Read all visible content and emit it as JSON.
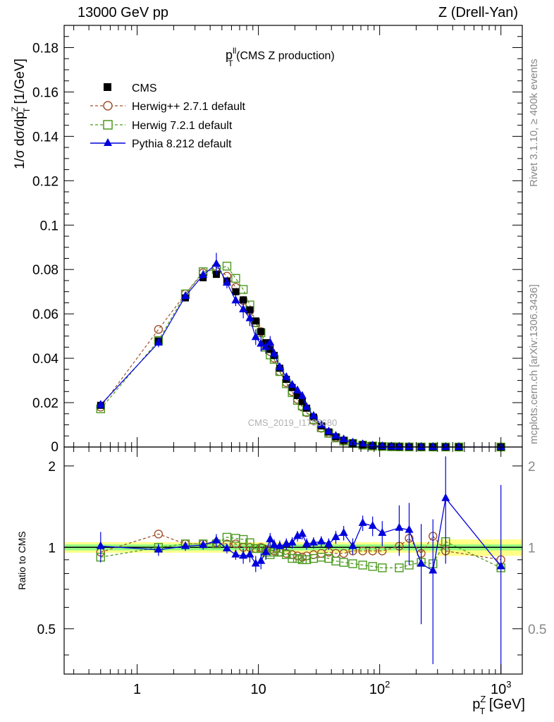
{
  "header": {
    "left": "13000 GeV pp",
    "right": "Z (Drell-Yan)"
  },
  "side_labels": {
    "rivet": "Rivet 3.1.10, ≥ 400k events",
    "mcplots": "mcplots.cern.ch [arXiv:1306.3436]"
  },
  "watermark": "CMS_2019_I1753680",
  "colors": {
    "data": "#000000",
    "herwigpp": "#a0522d",
    "herwig7": "#4c9a1f",
    "pythia": "#0000dd",
    "band_inner": "#80ff80",
    "band_outer": "#ffff80"
  },
  "chart_data": [
    {
      "type": "scatter",
      "title_main": "p",
      "title_sup": "ll",
      "title_sub": "T",
      "title_rest": " (CMS Z production)",
      "ylabel": "1/σ dσ/dp",
      "ylabel_sup": "Z",
      "ylabel_sub": "T",
      "ylabel_unit": " [1/GeV]",
      "xscale": "log",
      "xlim": [
        0.25,
        1500
      ],
      "ylim": [
        0,
        0.19
      ],
      "yticks": [
        0.02,
        0.04,
        0.06,
        0.08,
        0.1,
        0.12,
        0.14,
        0.16,
        0.18
      ],
      "ytick_labels": [
        "0.02",
        "0.04",
        "0.06",
        "0.08",
        "0.1",
        "0.12",
        "0.14",
        "0.16",
        "0.18"
      ],
      "y_zero_label": "0",
      "legend": [
        {
          "name": "CMS",
          "key": "cms"
        },
        {
          "name": "Herwig++ 2.7.1 default",
          "key": "herwigpp"
        },
        {
          "name": "Herwig 7.2.1 default",
          "key": "herwig7"
        },
        {
          "name": "Pythia 8.212 default",
          "key": "pythia"
        }
      ],
      "x": [
        0.5,
        1.5,
        2.5,
        3.5,
        4.5,
        5.5,
        6.5,
        7.5,
        8.5,
        9.5,
        10.5,
        11.5,
        12.5,
        13.5,
        15,
        17,
        19,
        21,
        23,
        25,
        28.5,
        33,
        38,
        43.5,
        50.5,
        60,
        72.5,
        87.5,
        105,
        125,
        145,
        175,
        220,
        275,
        350,
        450,
        1000
      ],
      "series": [
        {
          "name": "CMS",
          "key": "cms",
          "values": [
            0.0188,
            0.0478,
            0.0672,
            0.0763,
            0.0778,
            0.0748,
            0.07,
            0.0663,
            0.0618,
            0.0568,
            0.052,
            0.047,
            0.044,
            0.0413,
            0.0355,
            0.0305,
            0.0268,
            0.0232,
            0.0205,
            0.0175,
            0.0135,
            0.0095,
            0.0068,
            0.0046,
            0.003,
            0.0018,
            0.001,
            0.00055,
            0.0003,
            0.00017,
            0.0001,
            5e-05,
            2e-05,
            8e-06,
            3e-06,
            1e-06,
            1e-07
          ]
        },
        {
          "name": "Herwig++ 2.7.1 default",
          "key": "herwigpp",
          "values": [
            0.018,
            0.053,
            0.069,
            0.0785,
            0.081,
            0.077,
            0.072,
            0.066,
            0.0615,
            0.056,
            0.052,
            0.046,
            0.043,
            0.04,
            0.034,
            0.029,
            0.025,
            0.0215,
            0.018,
            0.0155,
            0.012,
            0.0085,
            0.0063,
            0.0043,
            0.0028,
            0.0017,
            0.00097,
            0.00053,
            0.00029,
            0.00017,
            0.0001,
            5e-05,
            2e-05,
            8e-06,
            3e-06,
            1e-06,
            1e-07
          ]
        },
        {
          "name": "Herwig 7.2.1 default",
          "key": "herwig7",
          "values": [
            0.0172,
            0.048,
            0.069,
            0.079,
            0.08,
            0.0815,
            0.076,
            0.071,
            0.064,
            0.056,
            0.0515,
            0.045,
            0.0415,
            0.0395,
            0.034,
            0.0285,
            0.0245,
            0.021,
            0.0185,
            0.0158,
            0.0123,
            0.0087,
            0.0062,
            0.0041,
            0.0027,
            0.0016,
            0.00085,
            0.00046,
            0.00025,
            0.00014,
            8e-05,
            4e-05,
            1.7e-05,
            7e-06,
            2.5e-06,
            1e-06,
            1e-07
          ]
        },
        {
          "name": "Pythia 8.212 default",
          "key": "pythia",
          "values": [
            0.019,
            0.047,
            0.068,
            0.0775,
            0.0825,
            0.074,
            0.066,
            0.062,
            0.058,
            0.0495,
            0.0465,
            0.045,
            0.047,
            0.042,
            0.036,
            0.0315,
            0.028,
            0.0255,
            0.023,
            0.018,
            0.014,
            0.01,
            0.007,
            0.005,
            0.0034,
            0.002,
            0.00125,
            0.00065,
            0.00036,
            0.0002,
            0.00011,
            5e-05,
            2e-05,
            7e-06,
            5e-06,
            1e-06,
            1e-07
          ]
        }
      ],
      "pythia_err": [
        0.0018,
        0.002,
        0.002,
        0.0022,
        0.005,
        0.0025,
        0.0025,
        0.004,
        0.0035,
        0.0035,
        0.0035,
        0.003,
        0.003,
        0.002,
        0.002,
        0.0015,
        0.0015,
        0.0015,
        0.0015,
        0.001,
        0.0008,
        0.0006,
        0.0005,
        0.0004,
        0.0003,
        0.0002,
        0.00015,
        0.0001,
        6e-05,
        4e-05,
        3e-05,
        2e-05,
        1e-05,
        5e-06,
        5e-06,
        1e-06,
        1e-07
      ]
    },
    {
      "type": "line",
      "ylabel": "Ratio to CMS",
      "xlabel": "p",
      "xlabel_sup": "Z",
      "xlabel_sub": "T",
      "xlabel_unit": " [GeV]",
      "xscale": "log",
      "yscale": "log",
      "xlim": [
        0.25,
        1500
      ],
      "ylim": [
        0.34,
        2.35
      ],
      "yticks": [
        0.5,
        1,
        2
      ],
      "ytick_labels": [
        "0.5",
        "1",
        "2"
      ],
      "xticks": [
        1,
        10,
        100,
        1000
      ],
      "xtick_labels": [
        {
          "base": "1",
          "exp": ""
        },
        {
          "base": "10",
          "exp": ""
        },
        {
          "base": "10",
          "exp": "2"
        },
        {
          "base": "10",
          "exp": "3"
        }
      ],
      "band": {
        "inner": 0.025,
        "outer": 0.045,
        "outer_high": 0.07
      },
      "series": [
        {
          "name": "Herwig++ 2.7.1 default",
          "key": "herwigpp",
          "values": [
            0.96,
            1.12,
            1.03,
            1.03,
            1.04,
            1.03,
            1.03,
            1.0,
            1.0,
            0.99,
            1.0,
            0.98,
            0.98,
            0.97,
            0.96,
            0.95,
            0.94,
            0.93,
            0.92,
            0.93,
            0.94,
            0.95,
            0.96,
            0.95,
            0.95,
            0.97,
            0.97,
            0.97,
            0.97,
            null,
            1.01,
            1.08,
            0.95,
            1.1,
            0.97,
            null,
            0.9
          ]
        },
        {
          "name": "Herwig 7.2.1 default",
          "key": "herwig7",
          "values": [
            0.92,
            1.0,
            1.03,
            1.03,
            1.03,
            1.09,
            1.08,
            1.07,
            1.04,
            0.99,
            0.99,
            0.96,
            0.94,
            0.96,
            0.96,
            0.94,
            0.91,
            0.91,
            0.9,
            0.9,
            0.91,
            0.92,
            0.91,
            0.89,
            0.88,
            0.87,
            0.86,
            0.85,
            0.84,
            null,
            0.84,
            0.86,
            0.88,
            0.87,
            1.05,
            null,
            0.84
          ]
        },
        {
          "name": "Pythia 8.212 default",
          "key": "pythia",
          "values": [
            1.01,
            0.98,
            1.01,
            1.02,
            1.06,
            0.99,
            0.94,
            0.93,
            0.94,
            0.87,
            0.89,
            0.96,
            1.07,
            1.02,
            1.01,
            1.03,
            1.04,
            1.1,
            1.12,
            1.03,
            1.04,
            1.05,
            1.03,
            1.09,
            1.13,
            1.01,
            1.23,
            1.2,
            1.13,
            null,
            1.18,
            1.16,
            0.87,
            0.82,
            1.52,
            null,
            0.85
          ]
        }
      ],
      "pythia_err": [
        0.13,
        0.05,
        0.04,
        0.04,
        0.06,
        0.04,
        0.04,
        0.06,
        0.06,
        0.06,
        0.06,
        0.06,
        0.06,
        0.05,
        0.05,
        0.05,
        0.05,
        0.05,
        0.05,
        0.05,
        0.05,
        0.05,
        0.05,
        0.06,
        0.07,
        0.07,
        0.08,
        0.1,
        0.12,
        null,
        0.25,
        0.3,
        0.35,
        0.45,
        0.65,
        null,
        0.85
      ]
    }
  ]
}
